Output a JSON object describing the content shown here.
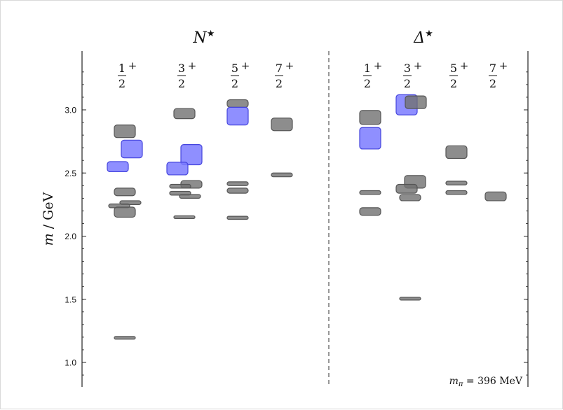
{
  "chart_data": {
    "type": "level-spectrum",
    "ylabel_italic": "m",
    "ylabel_rest": " / GeV",
    "ylim": [
      0.8,
      3.45
    ],
    "y_ticks": [
      {
        "value": 1.0,
        "label": "1.0"
      },
      {
        "value": 1.5,
        "label": "1.5"
      },
      {
        "value": 2.0,
        "label": "2.0"
      },
      {
        "value": 2.5,
        "label": "2.5"
      },
      {
        "value": 3.0,
        "label": "3.0"
      }
    ],
    "annotation": {
      "lhs": "m",
      "sub": "π",
      "rhs": " = 396 MeV"
    },
    "colors": {
      "gray": "#707070",
      "blue": "#7b7bff",
      "dark_gray": "#555555",
      "dark_blue": "#4444dd"
    },
    "panels": [
      {
        "title_base": "N",
        "title_sup": "★",
        "columns": [
          {
            "num": "1",
            "den": "2",
            "sup": "+",
            "levels": [
              {
                "mass": 2.83,
                "err": 0.05,
                "color": "gray",
                "offset": 0
              },
              {
                "mass": 2.69,
                "err": 0.07,
                "color": "blue",
                "offset": 1
              },
              {
                "mass": 2.55,
                "err": 0.04,
                "color": "blue",
                "offset": -1
              },
              {
                "mass": 2.35,
                "err": 0.03,
                "color": "gray",
                "offset": 0
              },
              {
                "mass": 2.265,
                "err": 0.015,
                "color": "gray",
                "offset": 0.8
              },
              {
                "mass": 2.24,
                "err": 0.015,
                "color": "gray",
                "offset": -0.8
              },
              {
                "mass": 2.19,
                "err": 0.04,
                "color": "gray",
                "offset": 0
              },
              {
                "mass": 1.195,
                "err": 0.006,
                "color": "gray",
                "offset": 0
              }
            ]
          },
          {
            "num": "3",
            "den": "2",
            "sup": "+",
            "levels": [
              {
                "mass": 2.97,
                "err": 0.04,
                "color": "gray",
                "offset": 0
              },
              {
                "mass": 2.645,
                "err": 0.08,
                "color": "blue",
                "offset": 1
              },
              {
                "mass": 2.535,
                "err": 0.05,
                "color": "blue",
                "offset": -1
              },
              {
                "mass": 2.41,
                "err": 0.03,
                "color": "gray",
                "offset": 1
              },
              {
                "mass": 2.395,
                "err": 0.015,
                "color": "gray",
                "offset": -0.6
              },
              {
                "mass": 2.34,
                "err": 0.015,
                "color": "gray",
                "offset": -0.6
              },
              {
                "mass": 2.315,
                "err": 0.015,
                "color": "gray",
                "offset": 0.8
              },
              {
                "mass": 2.15,
                "err": 0.01,
                "color": "gray",
                "offset": 0
              }
            ]
          },
          {
            "num": "5",
            "den": "2",
            "sup": "+",
            "levels": [
              {
                "mass": 3.05,
                "err": 0.03,
                "color": "gray",
                "offset": 0
              },
              {
                "mass": 2.95,
                "err": 0.07,
                "color": "blue",
                "offset": 0
              },
              {
                "mass": 2.415,
                "err": 0.015,
                "color": "gray",
                "offset": 0
              },
              {
                "mass": 2.36,
                "err": 0.02,
                "color": "gray",
                "offset": 0
              },
              {
                "mass": 2.145,
                "err": 0.012,
                "color": "gray",
                "offset": 0
              }
            ]
          },
          {
            "num": "7",
            "den": "2",
            "sup": "+",
            "levels": [
              {
                "mass": 2.885,
                "err": 0.05,
                "color": "gray",
                "offset": 0
              },
              {
                "mass": 2.485,
                "err": 0.015,
                "color": "gray",
                "offset": 0
              }
            ]
          }
        ]
      },
      {
        "title_base": "Δ",
        "title_sup": "★",
        "columns": [
          {
            "num": "1",
            "den": "2",
            "sup": "+",
            "levels": [
              {
                "mass": 2.94,
                "err": 0.055,
                "color": "gray",
                "offset": 0
              },
              {
                "mass": 2.775,
                "err": 0.085,
                "color": "blue",
                "offset": 0
              },
              {
                "mass": 2.345,
                "err": 0.015,
                "color": "gray",
                "offset": 0
              },
              {
                "mass": 2.195,
                "err": 0.03,
                "color": "gray",
                "offset": 0
              }
            ]
          },
          {
            "num": "3",
            "den": "2",
            "sup": "+",
            "levels": [
              {
                "mass": 3.04,
                "err": 0.08,
                "color": "blue",
                "offset": -0.5
              },
              {
                "mass": 3.06,
                "err": 0.05,
                "color": "gray",
                "offset": 0.8
              },
              {
                "mass": 2.43,
                "err": 0.05,
                "color": "gray",
                "offset": 0.7
              },
              {
                "mass": 2.375,
                "err": 0.035,
                "color": "gray",
                "offset": -0.5
              },
              {
                "mass": 2.305,
                "err": 0.025,
                "color": "gray",
                "offset": 0
              },
              {
                "mass": 1.505,
                "err": 0.007,
                "color": "gray",
                "offset": 0
              }
            ]
          },
          {
            "num": "5",
            "den": "2",
            "sup": "+",
            "levels": [
              {
                "mass": 2.665,
                "err": 0.05,
                "color": "gray",
                "offset": 0
              },
              {
                "mass": 2.42,
                "err": 0.015,
                "color": "gray",
                "offset": 0
              },
              {
                "mass": 2.345,
                "err": 0.015,
                "color": "gray",
                "offset": 0
              }
            ]
          },
          {
            "num": "7",
            "den": "2",
            "sup": "+",
            "levels": [
              {
                "mass": 2.315,
                "err": 0.035,
                "color": "gray",
                "offset": 0
              }
            ]
          }
        ]
      }
    ]
  }
}
